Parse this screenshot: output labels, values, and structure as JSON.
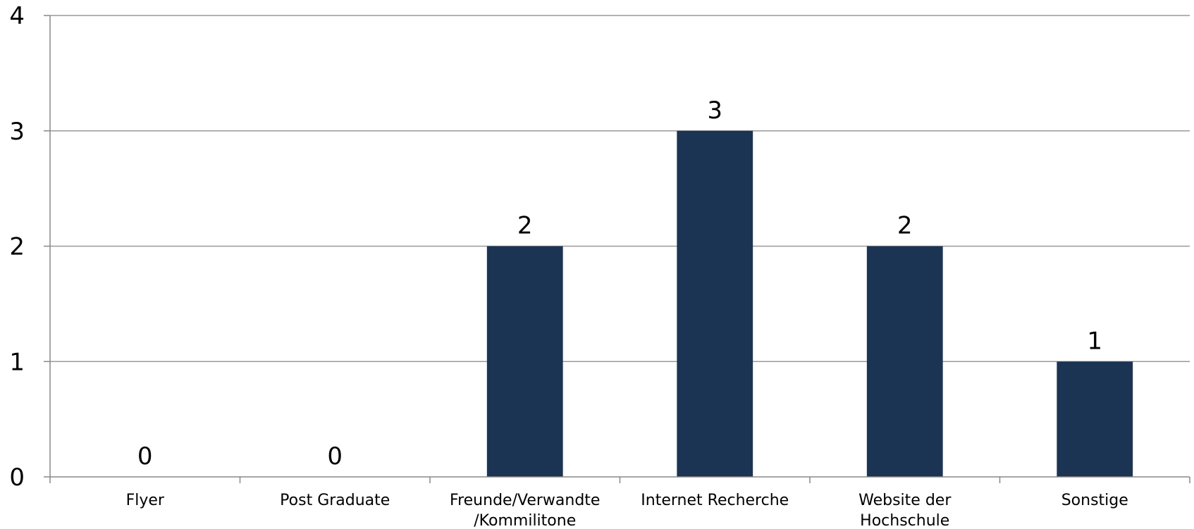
{
  "chart_data": {
    "type": "bar",
    "categories": [
      [
        "Flyer"
      ],
      [
        "Post Graduate"
      ],
      [
        "Freunde/Verwandte",
        "/Kommilitone"
      ],
      [
        "Internet Recherche"
      ],
      [
        "Website der",
        "Hochschule"
      ],
      [
        "Sonstige"
      ]
    ],
    "values": [
      0,
      0,
      2,
      3,
      2,
      1
    ],
    "ylim": [
      0,
      4
    ],
    "yticks": [
      0,
      1,
      2,
      3,
      4
    ],
    "grid": true,
    "bar_color": "#1c3454",
    "data_labels": true
  }
}
